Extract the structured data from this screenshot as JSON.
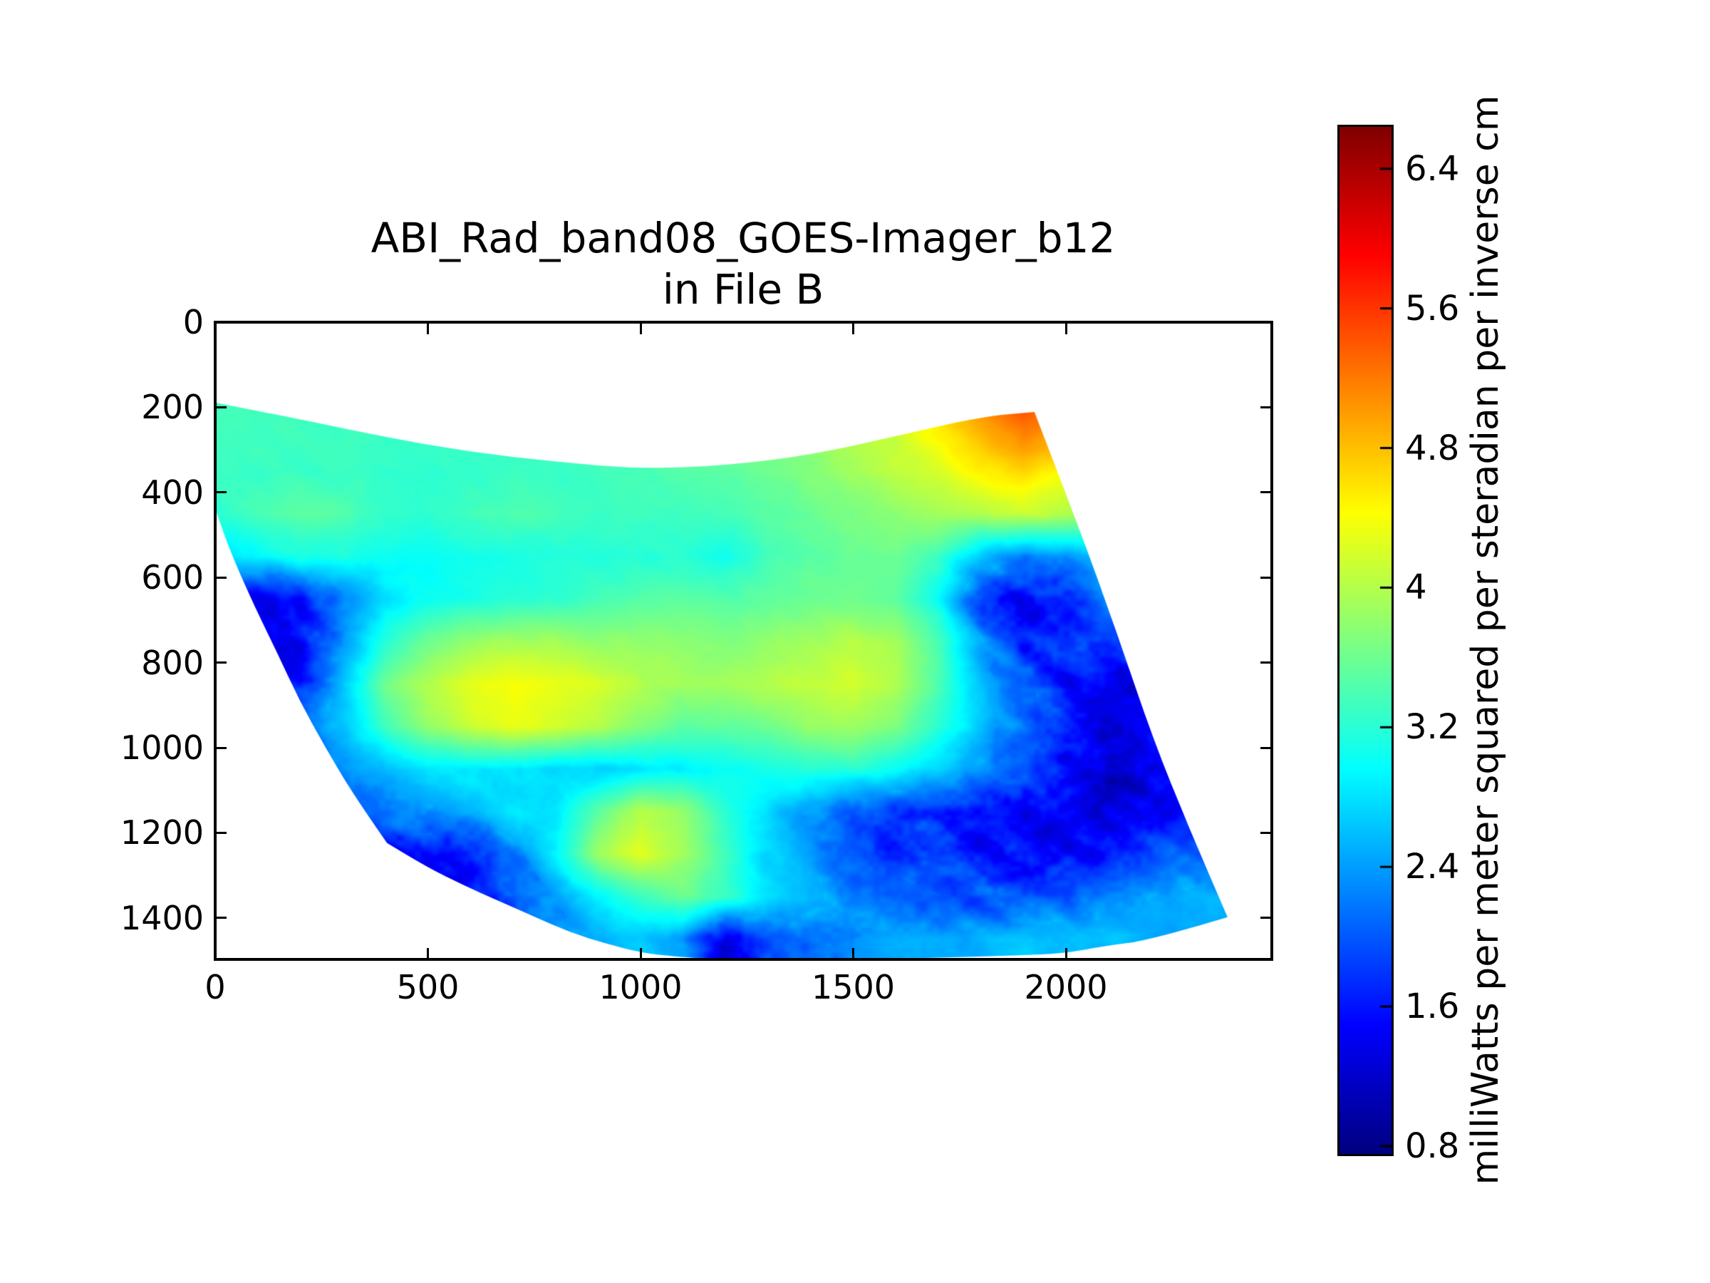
{
  "title": {
    "line1": "ABI_Rad_band08_GOES-Imager_b12",
    "line2": "in File B"
  },
  "chart_data": {
    "type": "heatmap",
    "title": "ABI_Rad_band08_GOES-Imager_b12 in File B",
    "xlim": [
      0,
      2484
    ],
    "ylim": [
      1497,
      0
    ],
    "x_ticks": [
      0,
      500,
      1000,
      1500,
      2000
    ],
    "y_ticks": [
      0,
      200,
      400,
      600,
      800,
      1000,
      1200,
      1400
    ],
    "grid_visible": false,
    "colormap": "jet",
    "vmin": 0.755,
    "vmax": 6.64,
    "colorbar": {
      "ticks": [
        0.8,
        1.6,
        2.4,
        3.2,
        4,
        4.8,
        5.6,
        6.4
      ],
      "tick_labels": [
        "0.8",
        "1.6",
        "2.4",
        "3.2",
        "4",
        "4.8",
        "5.6",
        "6.4"
      ],
      "label": "milliWatts per meter squared per steradian per inverse cm"
    },
    "swath_outline": {
      "top": [
        [
          0,
          189
        ],
        [
          100,
          209
        ],
        [
          200,
          228
        ],
        [
          400,
          270
        ],
        [
          600,
          305
        ],
        [
          800,
          328
        ],
        [
          1000,
          345
        ],
        [
          1200,
          337
        ],
        [
          1400,
          312
        ],
        [
          1600,
          268
        ],
        [
          1800,
          222
        ],
        [
          1926,
          211
        ]
      ],
      "right": [
        [
          1926,
          211
        ],
        [
          2030,
          480
        ],
        [
          2120,
          730
        ],
        [
          2205,
          980
        ],
        [
          2290,
          1190
        ],
        [
          2380,
          1398
        ]
      ],
      "bottom": [
        [
          2380,
          1398
        ],
        [
          2200,
          1452
        ],
        [
          2090,
          1466
        ],
        [
          2006,
          1482
        ],
        [
          1923,
          1487
        ],
        [
          1755,
          1492
        ],
        [
          1550,
          1497
        ],
        [
          1300,
          1499
        ],
        [
          1169,
          1497
        ],
        [
          1085,
          1491
        ],
        [
          1002,
          1482
        ],
        [
          918,
          1460
        ],
        [
          834,
          1434
        ],
        [
          750,
          1397
        ],
        [
          667,
          1360
        ],
        [
          583,
          1323
        ],
        [
          499,
          1281
        ],
        [
          404,
          1224
        ]
      ],
      "left_lower": [
        [
          404,
          1224
        ],
        [
          327,
          1114
        ],
        [
          260,
          1001
        ],
        [
          198,
          889
        ],
        [
          147,
          779
        ],
        [
          92,
          667
        ],
        [
          42,
          554
        ],
        [
          13,
          477
        ],
        [
          0,
          437
        ]
      ],
      "left": [
        [
          0,
          437
        ],
        [
          0,
          189
        ]
      ]
    },
    "values_grid": {
      "x0": 0,
      "dx": 100,
      "y0": 150,
      "dy": 100,
      "values": [
        [
          3.35,
          3.35,
          3.35,
          3.35,
          3.35,
          3.35,
          3.35,
          3.35,
          3.36,
          3.38,
          3.42,
          3.5,
          3.6,
          3.7,
          3.8,
          3.92,
          4.2,
          4.7,
          5.3,
          5.6,
          5.4,
          5.0,
          4.8,
          4.6,
          4.5
        ],
        [
          3.32,
          3.32,
          3.32,
          3.31,
          3.3,
          3.28,
          3.28,
          3.29,
          3.3,
          3.33,
          3.38,
          3.48,
          3.58,
          3.68,
          3.82,
          3.98,
          4.15,
          4.5,
          4.9,
          5.2,
          5.0,
          4.7,
          4.5,
          4.4,
          4.3
        ],
        [
          3.3,
          3.3,
          3.28,
          3.27,
          3.25,
          3.24,
          3.25,
          3.28,
          3.29,
          3.33,
          3.38,
          3.44,
          3.52,
          3.62,
          3.76,
          3.9,
          4.05,
          4.2,
          4.5,
          4.7,
          4.4,
          4.15,
          3.95,
          3.8,
          3.7
        ],
        [
          3.25,
          3.38,
          3.5,
          3.42,
          3.3,
          3.25,
          3.35,
          3.42,
          3.36,
          3.28,
          3.3,
          3.34,
          3.38,
          3.48,
          3.58,
          3.68,
          3.78,
          3.9,
          4.0,
          4.1,
          4.0,
          3.8,
          3.6,
          3.4,
          3.3
        ],
        [
          2.7,
          2.95,
          3.1,
          3.15,
          3.05,
          3.0,
          3.08,
          3.12,
          3.16,
          3.18,
          3.18,
          3.22,
          3.05,
          3.38,
          3.48,
          3.58,
          3.58,
          3.3,
          2.6,
          2.3,
          2.4,
          2.7,
          2.8,
          2.8,
          2.7
        ],
        [
          1.5,
          1.4,
          1.6,
          2.2,
          2.8,
          3.0,
          3.1,
          3.2,
          3.25,
          3.35,
          3.45,
          3.48,
          3.48,
          3.52,
          3.58,
          3.62,
          3.52,
          3.0,
          1.8,
          1.35,
          1.6,
          2.2,
          2.4,
          2.3,
          2.2
        ],
        [
          1.4,
          1.3,
          1.5,
          2.4,
          3.2,
          3.6,
          3.8,
          3.9,
          3.9,
          3.8,
          3.8,
          3.8,
          3.7,
          3.8,
          3.9,
          4.0,
          3.9,
          3.4,
          2.4,
          1.8,
          1.7,
          1.9,
          2.0,
          1.9,
          1.9
        ],
        [
          1.5,
          1.3,
          1.6,
          2.6,
          3.6,
          4.0,
          4.3,
          4.4,
          4.3,
          4.2,
          4.0,
          3.9,
          3.9,
          4.0,
          4.1,
          4.2,
          4.0,
          3.4,
          2.6,
          2.0,
          1.6,
          1.3,
          1.4,
          1.5,
          1.6
        ],
        [
          2.0,
          2.1,
          2.2,
          2.6,
          3.3,
          3.8,
          4.1,
          4.3,
          4.2,
          4.0,
          3.7,
          3.5,
          3.5,
          3.6,
          3.8,
          3.9,
          3.7,
          3.2,
          2.6,
          2.1,
          1.6,
          1.2,
          1.3,
          1.4,
          1.5
        ],
        [
          2.0,
          2.1,
          2.2,
          2.4,
          2.6,
          2.8,
          2.9,
          2.8,
          2.7,
          2.7,
          2.8,
          2.9,
          3.0,
          3.1,
          3.2,
          3.2,
          3.0,
          2.7,
          2.3,
          1.9,
          1.5,
          1.2,
          1.3,
          1.5,
          1.6
        ],
        [
          1.9,
          1.9,
          2.0,
          2.1,
          2.2,
          2.3,
          2.5,
          2.8,
          2.9,
          3.5,
          4.0,
          3.8,
          3.2,
          2.8,
          2.3,
          2.0,
          1.8,
          1.7,
          1.6,
          1.5,
          1.4,
          1.2,
          1.5,
          1.7,
          1.8
        ],
        [
          1.8,
          1.8,
          1.9,
          1.8,
          1.6,
          1.5,
          1.7,
          2.2,
          2.9,
          3.9,
          4.25,
          3.9,
          3.3,
          2.7,
          2.4,
          2.0,
          1.8,
          1.7,
          1.6,
          1.6,
          1.5,
          1.6,
          1.8,
          2.0,
          2.1
        ],
        [
          1.8,
          1.8,
          1.8,
          1.7,
          1.5,
          1.4,
          1.6,
          1.9,
          2.4,
          2.9,
          3.3,
          3.6,
          3.3,
          2.8,
          2.5,
          2.2,
          2.0,
          1.9,
          1.9,
          2.0,
          2.1,
          2.2,
          2.4,
          2.5,
          2.5
        ],
        [
          1.9,
          1.9,
          1.9,
          1.8,
          1.7,
          1.6,
          1.7,
          1.9,
          2.2,
          2.5,
          2.6,
          2.4,
          1.25,
          2.0,
          2.2,
          2.4,
          2.5,
          2.5,
          2.5,
          2.6,
          2.6,
          2.6,
          2.5,
          2.4,
          2.4
        ],
        [
          1.9,
          1.9,
          1.9,
          1.8,
          1.7,
          1.6,
          1.7,
          1.9,
          2.2,
          2.5,
          2.6,
          2.4,
          1.25,
          2.0,
          2.2,
          2.4,
          2.5,
          2.5,
          2.5,
          2.6,
          2.6,
          2.6,
          2.5,
          2.4,
          2.4
        ]
      ]
    }
  }
}
